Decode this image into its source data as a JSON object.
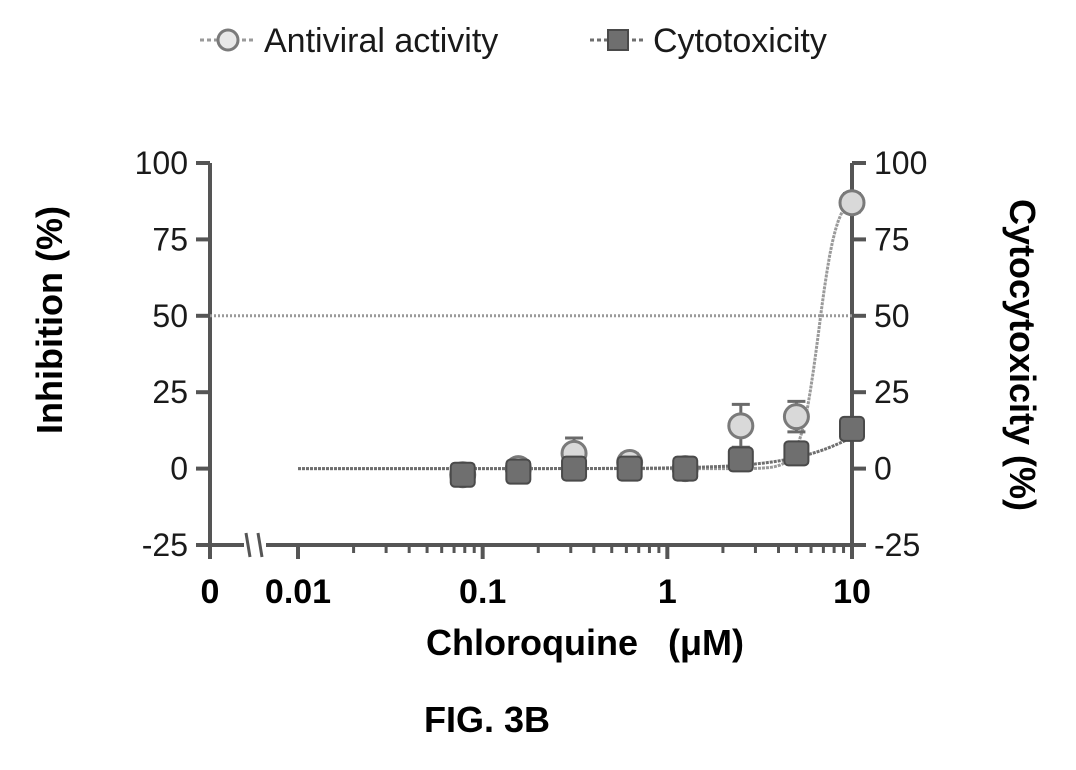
{
  "chart_data": {
    "type": "scatter",
    "title": "",
    "caption": "FIG. 3B",
    "xlabel": "Chloroquine   (μM)",
    "ylabel_left": "Inhibition (%)",
    "ylabel_right": "Cytocytoxicity (%)",
    "x_scale": "log",
    "x_ticks": [
      "0",
      "0.01",
      "0.1",
      "1",
      "10"
    ],
    "y_ticks": [
      "100",
      "75",
      "50",
      "25",
      "0",
      "-25"
    ],
    "ylim": [
      -25,
      100
    ],
    "xlim": [
      0.01,
      10
    ],
    "reference_line_y": 50,
    "legend_position": "top",
    "series": [
      {
        "name": "Antiviral activity",
        "color": "#9a9a9a",
        "marker": "circle-open",
        "x": [
          0.078,
          0.156,
          0.3125,
          0.625,
          1.25,
          2.5,
          5,
          10
        ],
        "y": [
          -2,
          0,
          5,
          2,
          0,
          14,
          17,
          87
        ],
        "err": [
          3,
          2,
          5,
          3,
          2,
          7,
          5,
          3
        ]
      },
      {
        "name": "Cytotoxicity",
        "color": "#6f6f6f",
        "marker": "square-filled",
        "x": [
          0.078,
          0.156,
          0.3125,
          0.625,
          1.25,
          2.5,
          5,
          10
        ],
        "y": [
          -2,
          -1,
          0,
          0,
          0,
          3,
          5,
          13
        ],
        "err": [
          2,
          2,
          2,
          2,
          2,
          2,
          2,
          3
        ]
      }
    ]
  }
}
